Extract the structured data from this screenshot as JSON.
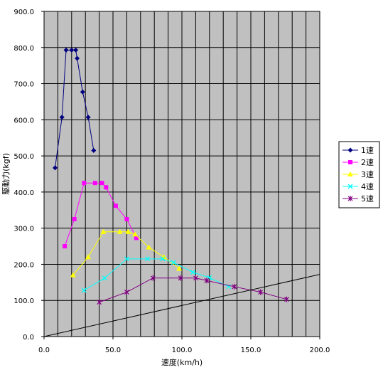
{
  "chart_data": {
    "type": "scatter",
    "title": "",
    "xlabel": "速度(km/h)",
    "ylabel": "駆動力(kgf)",
    "xlim": [
      0,
      200
    ],
    "ylim": [
      0,
      900
    ],
    "x_ticks": [
      "0.0",
      "50.0",
      "100.0",
      "150.0",
      "200.0"
    ],
    "y_ticks": [
      "0.0",
      "100.0",
      "200.0",
      "300.0",
      "400.0",
      "500.0",
      "600.0",
      "700.0",
      "800.0",
      "900.0"
    ],
    "grid": true,
    "legend_position": "right",
    "plot_background": "#c0c0c0",
    "series": [
      {
        "name": "1速",
        "color": "#000080",
        "marker": "diamond",
        "points": [
          [
            8,
            467
          ],
          [
            13,
            607
          ],
          [
            16,
            793
          ],
          [
            20,
            793
          ],
          [
            23,
            793
          ],
          [
            24,
            770
          ],
          [
            28,
            677
          ],
          [
            32,
            607
          ],
          [
            36,
            515
          ]
        ]
      },
      {
        "name": "2速",
        "color": "#ff00ff",
        "marker": "square",
        "points": [
          [
            15,
            250
          ],
          [
            22,
            325
          ],
          [
            29,
            425
          ],
          [
            37,
            425
          ],
          [
            42,
            425
          ],
          [
            45,
            413
          ],
          [
            52,
            362
          ],
          [
            60,
            325
          ],
          [
            67,
            273
          ]
        ]
      },
      {
        "name": "3速",
        "color": "#ffff00",
        "marker": "triangle",
        "points": [
          [
            21,
            170
          ],
          [
            32,
            220
          ],
          [
            43,
            290
          ],
          [
            55,
            290
          ],
          [
            61,
            290
          ],
          [
            66,
            283
          ],
          [
            76,
            247
          ],
          [
            87,
            220
          ],
          [
            98,
            188
          ]
        ]
      },
      {
        "name": "4速",
        "color": "#00ffff",
        "marker": "x",
        "points": [
          [
            29,
            128
          ],
          [
            44,
            162
          ],
          [
            60,
            215
          ],
          [
            75,
            215
          ],
          [
            86,
            215
          ],
          [
            94,
            205
          ],
          [
            108,
            178
          ],
          [
            120,
            163
          ],
          [
            134,
            138
          ]
        ]
      },
      {
        "name": "5速",
        "color": "#800080",
        "marker": "star",
        "points": [
          [
            40,
            95
          ],
          [
            60,
            123
          ],
          [
            79,
            162
          ],
          [
            99,
            162
          ],
          [
            110,
            162
          ],
          [
            118,
            155
          ],
          [
            138,
            138
          ],
          [
            157,
            123
          ],
          [
            176,
            103
          ]
        ]
      },
      {
        "name": "",
        "color": "#000000",
        "marker": "none",
        "points": [
          [
            0,
            0
          ],
          [
            200,
            172
          ]
        ]
      }
    ]
  }
}
